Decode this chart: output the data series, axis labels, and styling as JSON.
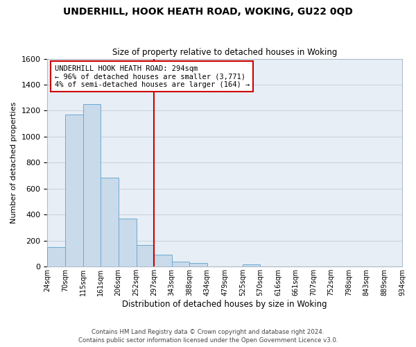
{
  "title": "UNDERHILL, HOOK HEATH ROAD, WOKING, GU22 0QD",
  "subtitle": "Size of property relative to detached houses in Woking",
  "xlabel": "Distribution of detached houses by size in Woking",
  "ylabel": "Number of detached properties",
  "bar_color": "#c9daea",
  "bar_edge_color": "#6aaad4",
  "background_color": "#ffffff",
  "axes_bg_color": "#e8eef5",
  "grid_color": "#c8d4e0",
  "bin_edges": [
    24,
    70,
    115,
    161,
    206,
    252,
    297,
    343,
    388,
    434,
    479,
    525,
    570,
    616,
    661,
    707,
    752,
    798,
    843,
    889,
    934
  ],
  "bin_labels": [
    "24sqm",
    "70sqm",
    "115sqm",
    "161sqm",
    "206sqm",
    "252sqm",
    "297sqm",
    "343sqm",
    "388sqm",
    "434sqm",
    "479sqm",
    "525sqm",
    "570sqm",
    "616sqm",
    "661sqm",
    "707sqm",
    "752sqm",
    "798sqm",
    "843sqm",
    "889sqm",
    "934sqm"
  ],
  "counts": [
    150,
    1170,
    1250,
    685,
    370,
    165,
    90,
    38,
    25,
    0,
    0,
    18,
    0,
    0,
    0,
    0,
    0,
    0,
    0,
    0
  ],
  "vline_x": 297,
  "vline_color": "#cc0000",
  "annotation_line1": "UNDERHILL HOOK HEATH ROAD: 294sqm",
  "annotation_line2": "← 96% of detached houses are smaller (3,771)",
  "annotation_line3": "4% of semi-detached houses are larger (164) →",
  "ylim": [
    0,
    1600
  ],
  "yticks": [
    0,
    200,
    400,
    600,
    800,
    1000,
    1200,
    1400,
    1600
  ],
  "footer_line1": "Contains HM Land Registry data © Crown copyright and database right 2024.",
  "footer_line2": "Contains public sector information licensed under the Open Government Licence v3.0."
}
